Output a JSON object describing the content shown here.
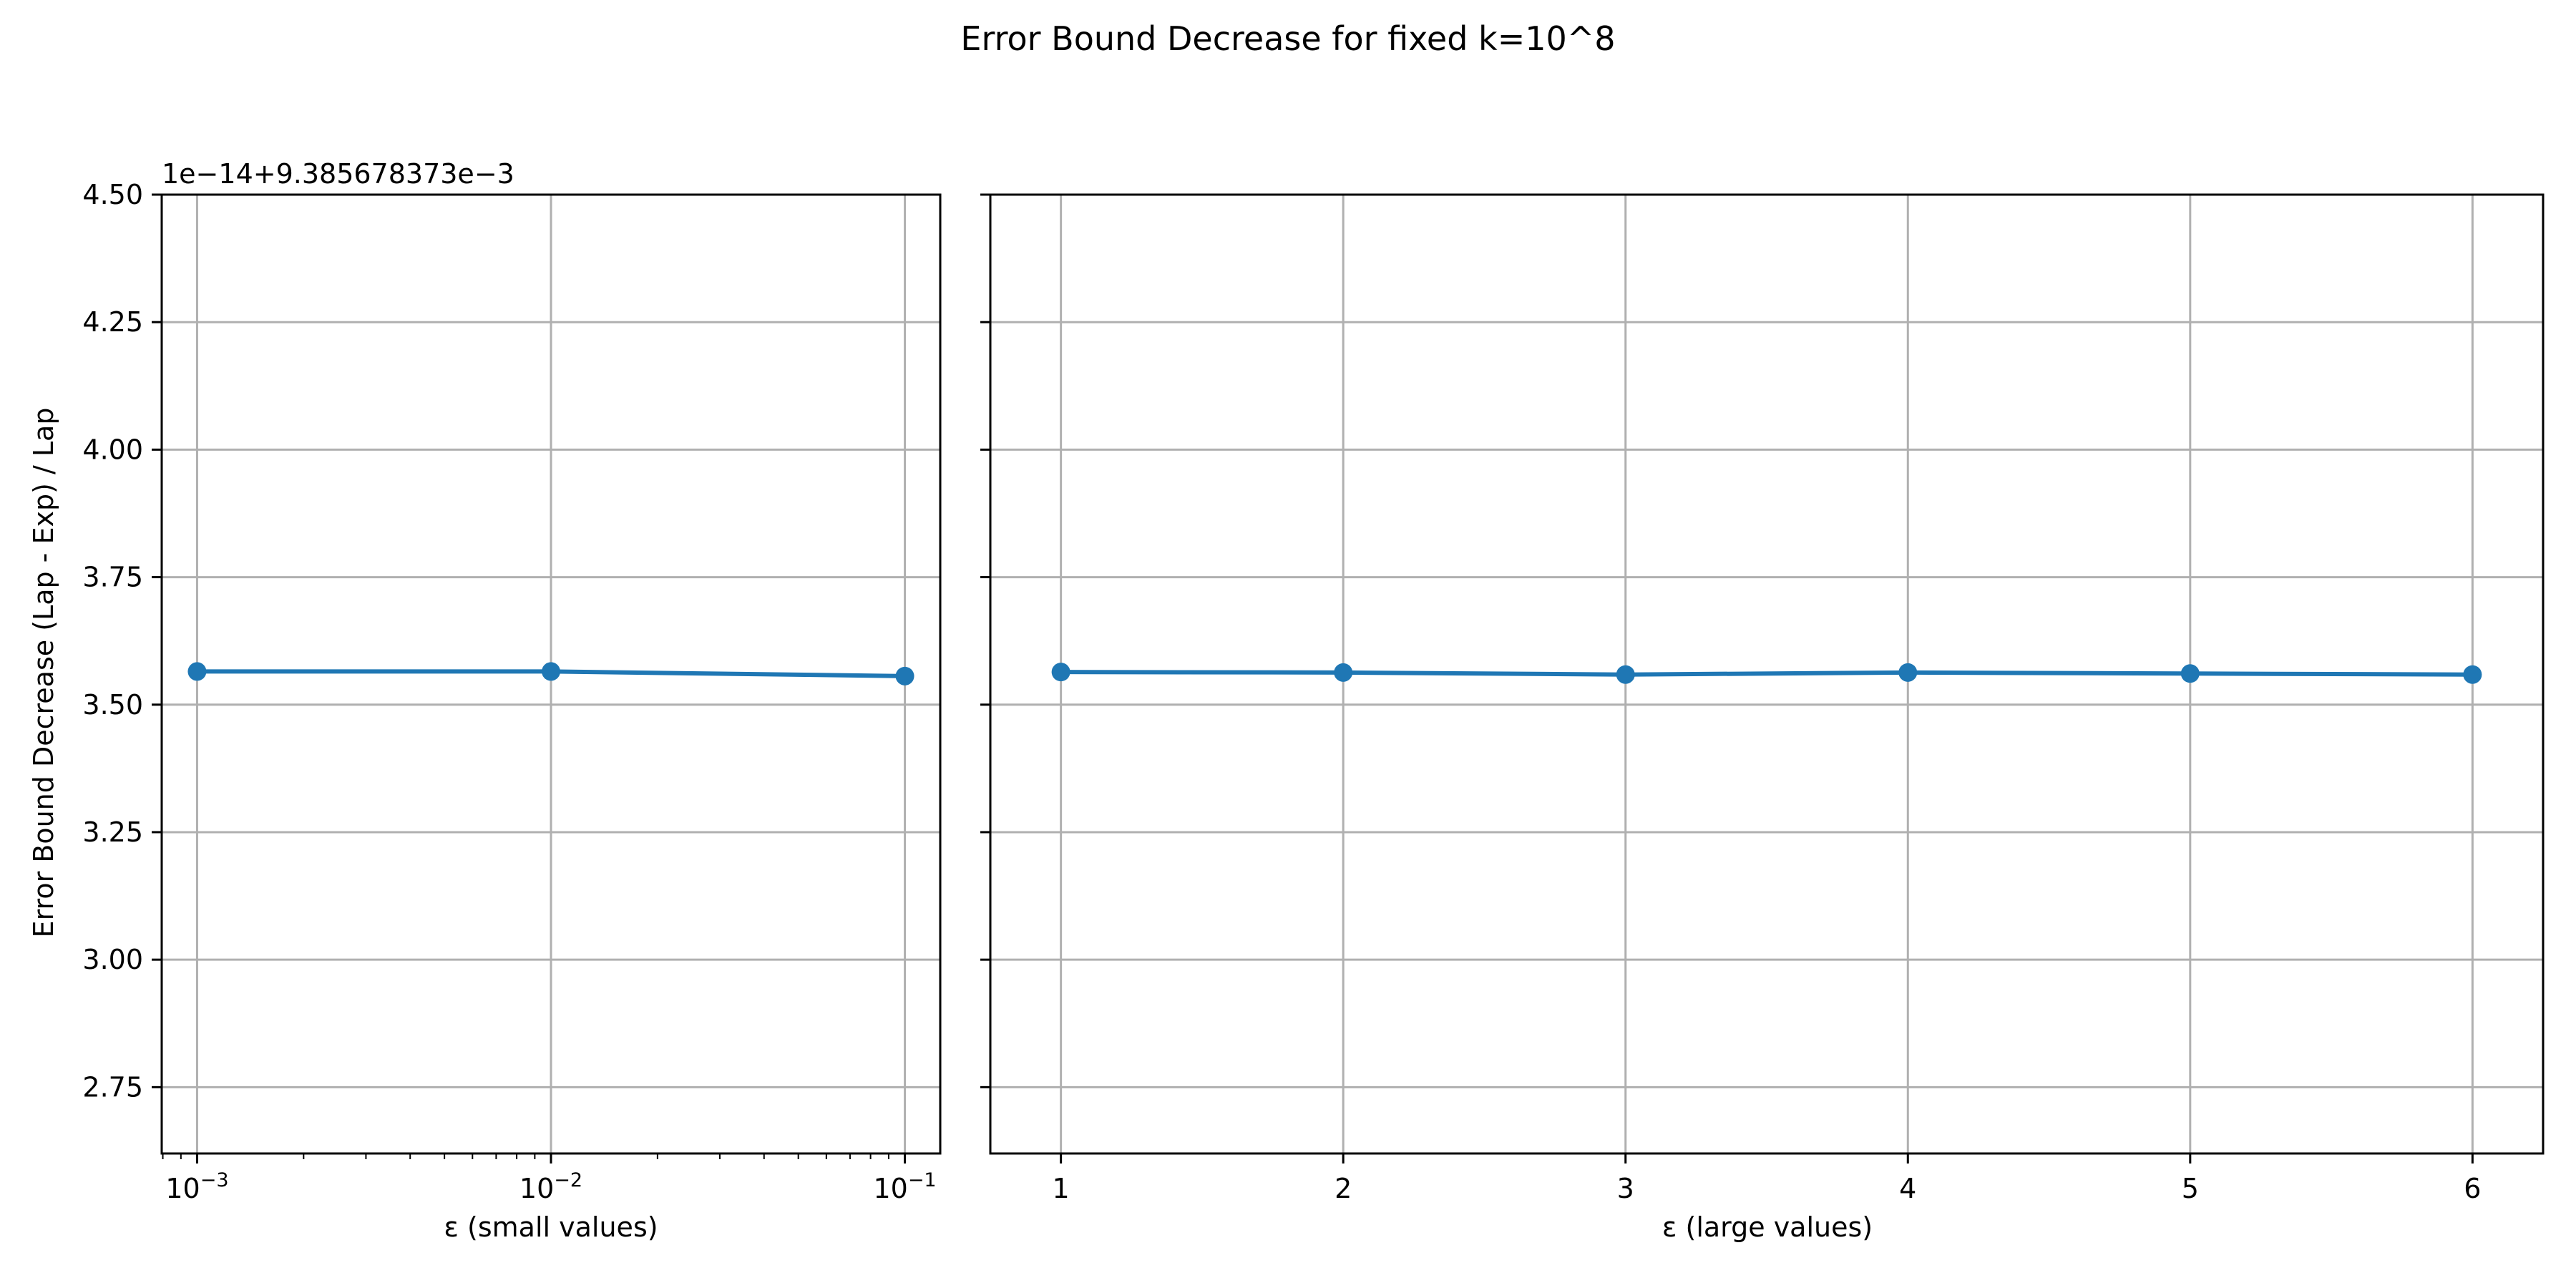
{
  "figure": {
    "title": "Error Bound Decrease for fixed k=10^8"
  },
  "chart_data": [
    {
      "type": "line",
      "title": "",
      "xlabel": "ε (small values)",
      "ylabel": "Error Bound Decrease (Lap - Exp) / Lap",
      "xscale": "log",
      "x_tick_values": [
        0.001,
        0.01,
        0.1
      ],
      "x_tick_labels": [
        {
          "base": "10",
          "exp": "−3"
        },
        {
          "base": "10",
          "exp": "−2"
        },
        {
          "base": "10",
          "exp": "−1"
        }
      ],
      "y_offset_text": "1e−14+9.385678373e−3",
      "y_axis_units": "y = 9.385678373e−3 + value × 1e−14",
      "y_ticks": [
        2.75,
        3.0,
        3.25,
        3.5,
        3.75,
        4.0,
        4.25,
        4.5
      ],
      "y_tick_labels": [
        "2.75",
        "3.00",
        "3.25",
        "3.50",
        "3.75",
        "4.00",
        "4.25",
        "4.50"
      ],
      "ylim": [
        2.62,
        4.5
      ],
      "grid": true,
      "series": [
        {
          "color": "#1f77b4",
          "marker": "circle",
          "x": [
            0.001,
            0.01,
            0.1
          ],
          "y": [
            3.565,
            3.565,
            3.556
          ]
        }
      ]
    },
    {
      "type": "line",
      "title": "",
      "xlabel": "ε (large values)",
      "ylabel": "",
      "xscale": "linear",
      "x_ticks": [
        1,
        2,
        3,
        4,
        5,
        6
      ],
      "x_tick_labels": [
        "1",
        "2",
        "3",
        "4",
        "5",
        "6"
      ],
      "xlim": [
        0.75,
        6.25
      ],
      "ylim": [
        2.62,
        4.5
      ],
      "shared_y": true,
      "grid": true,
      "series": [
        {
          "color": "#1f77b4",
          "marker": "circle",
          "x": [
            1,
            2,
            3,
            4,
            5,
            6
          ],
          "y": [
            3.564,
            3.563,
            3.559,
            3.563,
            3.561,
            3.559
          ]
        }
      ]
    }
  ]
}
